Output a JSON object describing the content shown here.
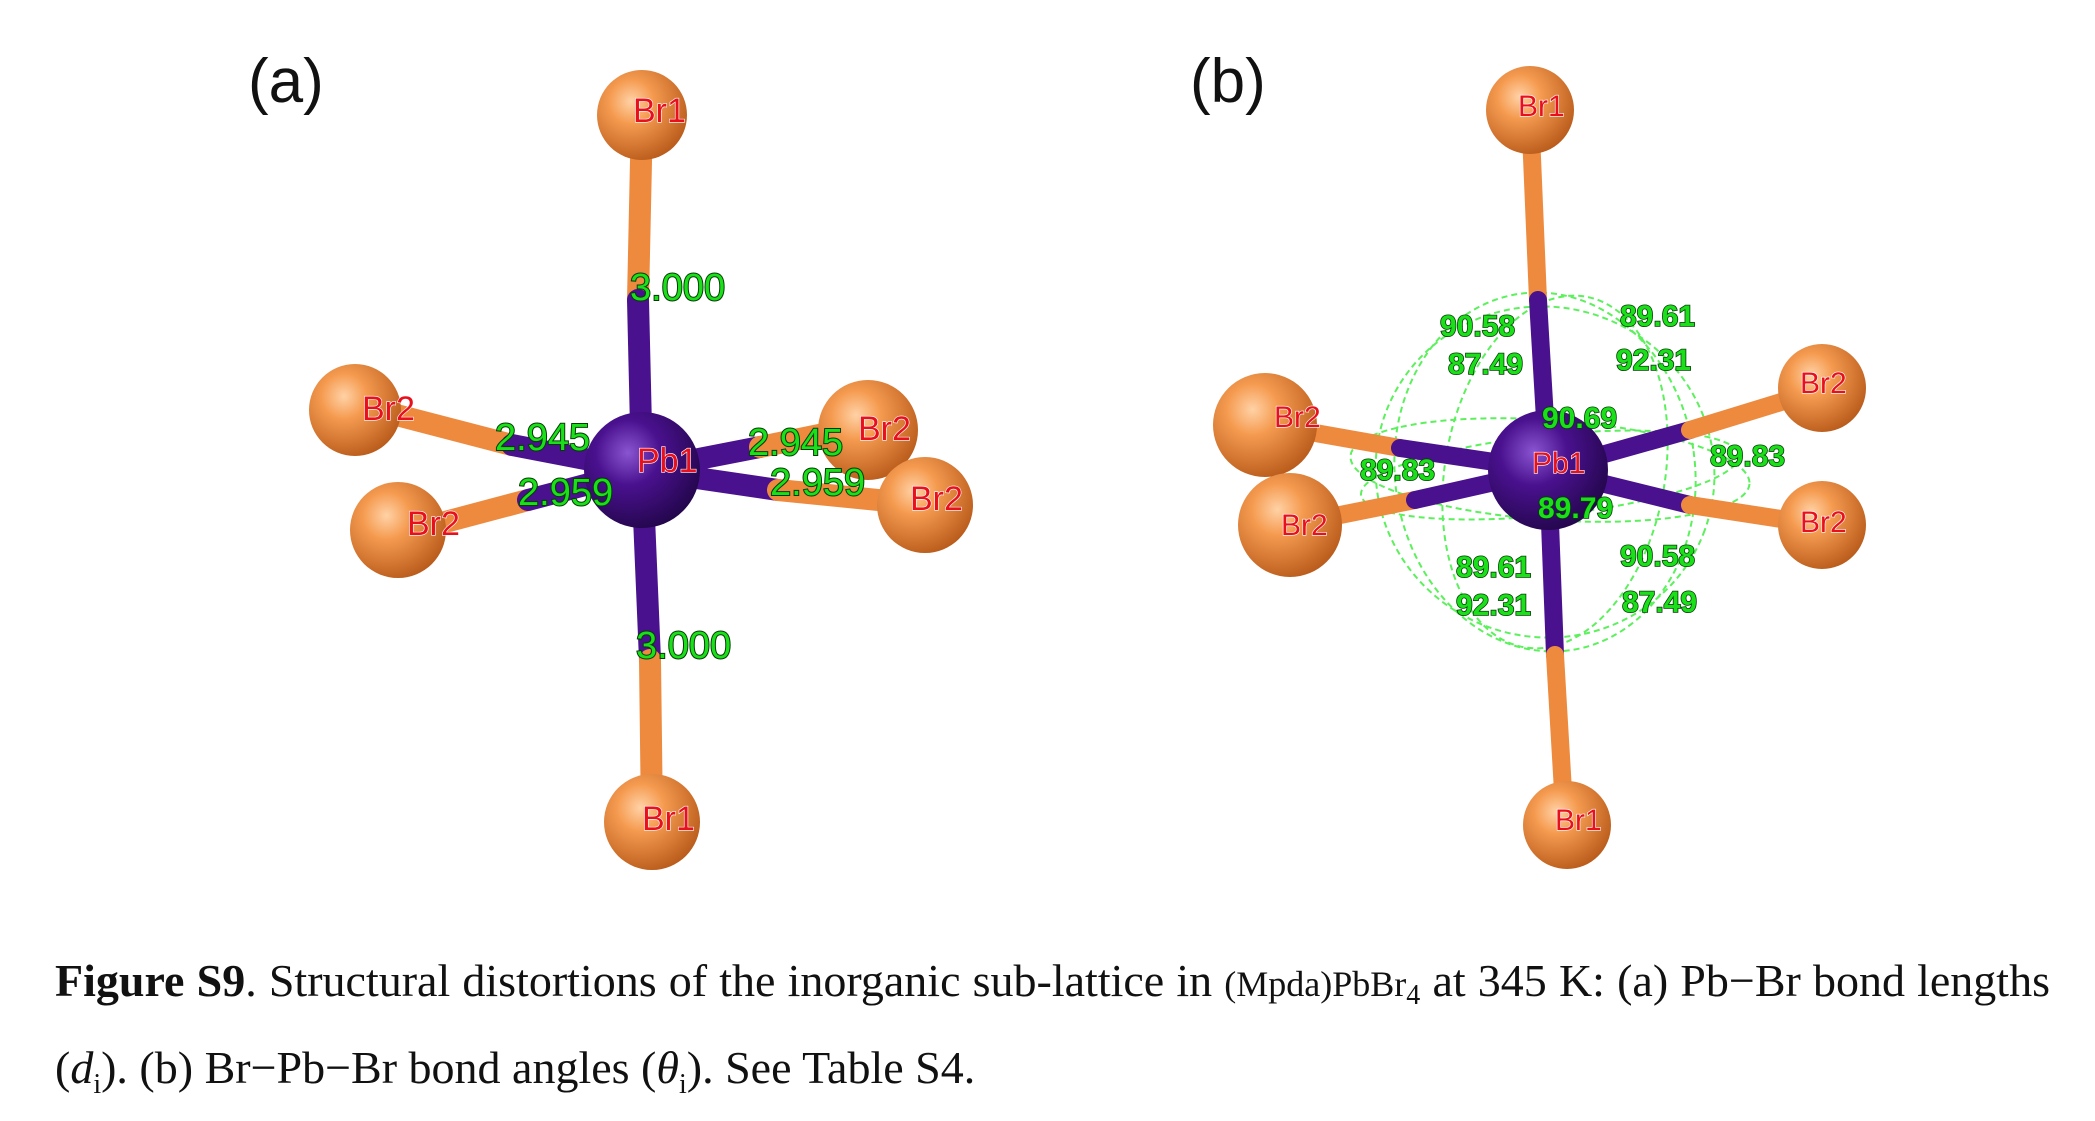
{
  "panels": [
    {
      "letter": "(a)",
      "center_atom": "Pb1",
      "atoms": [
        "Br1",
        "Br1",
        "Br2",
        "Br2",
        "Br2",
        "Br2"
      ],
      "bond_lengths": [
        "3.000",
        "3.000",
        "2.945",
        "2.959",
        "2.945",
        "2.959"
      ]
    },
    {
      "letter": "(b)",
      "center_atom": "Pb1",
      "atoms": [
        "Br1",
        "Br1",
        "Br2",
        "Br2",
        "Br2",
        "Br2"
      ],
      "bond_angles": [
        "90.58",
        "87.49",
        "89.61",
        "92.31",
        "90.69",
        "89.83",
        "89.83",
        "89.79",
        "89.61",
        "92.31",
        "90.58",
        "87.49"
      ]
    }
  ],
  "colors": {
    "br_atom": "#ee8a3e",
    "pb_atom": "#4a118f",
    "atom_label": "#e8101c",
    "measurement_label": "#19e019"
  },
  "caption": {
    "figure_id": "Figure S9",
    "text_1": ". Structural distortions of the inorganic sub-lattice in ",
    "formula_main": "(Mpda)PbBr",
    "formula_sub": "4",
    "text_2": " at 345 K: (a) Pb−Br bond lengths (",
    "var_d": "d",
    "sub_i_1": "i",
    "text_3": "). (b) Br−Pb−Br bond angles (",
    "var_theta": "θ",
    "sub_i_2": "i",
    "text_4": "). See Table S4."
  }
}
